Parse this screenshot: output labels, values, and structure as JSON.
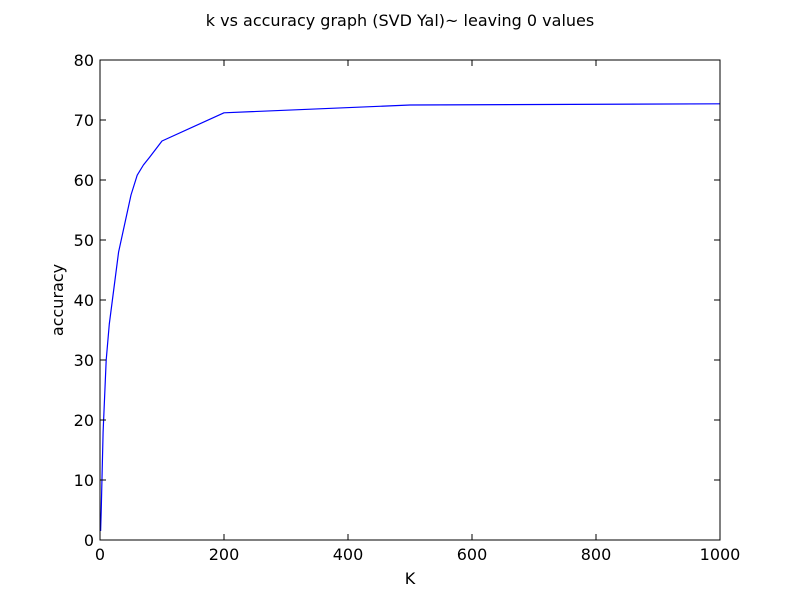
{
  "chart_data": {
    "type": "line",
    "title": "k vs accuracy graph (SVD Yal)~ leaving 0 values",
    "xlabel": "K",
    "ylabel": "accuracy",
    "xlim": [
      0,
      1000
    ],
    "ylim": [
      0,
      80
    ],
    "x_ticks": [
      0,
      200,
      400,
      600,
      800,
      1000
    ],
    "y_ticks": [
      0,
      10,
      20,
      30,
      40,
      50,
      60,
      70,
      80
    ],
    "grid": false,
    "series": [
      {
        "color": "#0000ff",
        "x": [
          1,
          2,
          5,
          10,
          15,
          20,
          30,
          50,
          60,
          70,
          80,
          100,
          200,
          500,
          1000
        ],
        "y": [
          1.5,
          5,
          18,
          30,
          36,
          40,
          48,
          57.5,
          60.8,
          62.5,
          63.8,
          66.5,
          71.2,
          72.5,
          72.7
        ]
      }
    ]
  }
}
